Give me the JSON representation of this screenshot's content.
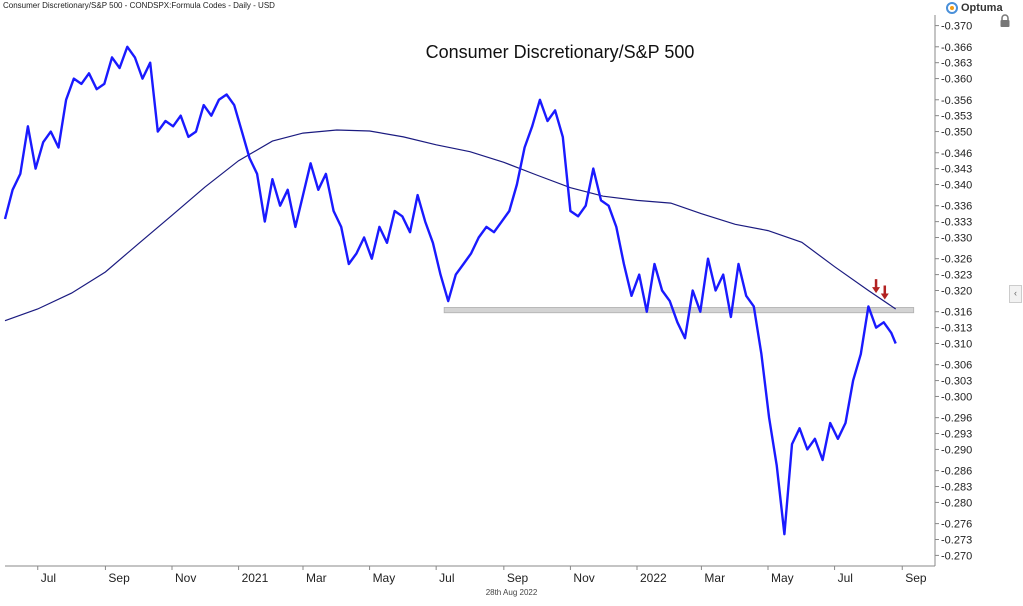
{
  "header": {
    "description": "Consumer Discretionary/S&P 500 - CONDSPX:Formula Codes - Daily - USD",
    "brand": "Optuma"
  },
  "footer": {
    "date": "28th Aug 2022"
  },
  "colors": {
    "price": "#1a1aff",
    "ma": "#1b1b80",
    "band": "#d3d3d3",
    "arrow": "#b22222",
    "grid": "#dddddd"
  },
  "chart_data": {
    "type": "line",
    "title": "Consumer Discretionary/S&P 500",
    "xlabel": "",
    "ylabel": "",
    "ylim": [
      0.268,
      0.372
    ],
    "y_ticks": [
      "0.370",
      "0.366",
      "0.363",
      "0.360",
      "0.356",
      "0.353",
      "0.350",
      "0.346",
      "0.343",
      "0.340",
      "0.336",
      "0.333",
      "0.330",
      "0.326",
      "0.323",
      "0.320",
      "0.316",
      "0.313",
      "0.310",
      "0.306",
      "0.303",
      "0.300",
      "0.296",
      "0.293",
      "0.290",
      "0.286",
      "0.283",
      "0.280",
      "0.276",
      "0.273",
      "0.270"
    ],
    "x_ticks": [
      "Jul",
      "Sep",
      "Nov",
      "2021",
      "Mar",
      "May",
      "Jul",
      "Sep",
      "Nov",
      "2022",
      "Mar",
      "May",
      "Jul",
      "Sep"
    ],
    "x_tick_dates": [
      "2020-07-01",
      "2020-09-01",
      "2020-11-01",
      "2021-01-01",
      "2021-03-01",
      "2021-05-01",
      "2021-07-01",
      "2021-09-01",
      "2021-11-01",
      "2022-01-01",
      "2022-03-01",
      "2022-05-01",
      "2022-07-01",
      "2022-09-01"
    ],
    "x_range": [
      "2020-06-01",
      "2022-10-01"
    ],
    "support_level": [
      0.3158,
      0.3168
    ],
    "support_span": [
      "2021-07-01",
      "2022-08-26"
    ],
    "arrows": [
      {
        "date": "2022-08-08",
        "value": 0.3195
      },
      {
        "date": "2022-08-16",
        "value": 0.3183
      }
    ],
    "series": [
      {
        "name": "",
        "dates": [
          "2020-06-01",
          "2020-06-08",
          "2020-06-15",
          "2020-06-22",
          "2020-06-29",
          "2020-07-06",
          "2020-07-13",
          "2020-07-20",
          "2020-07-27",
          "2020-08-03",
          "2020-08-10",
          "2020-08-17",
          "2020-08-24",
          "2020-08-31",
          "2020-09-07",
          "2020-09-14",
          "2020-09-21",
          "2020-09-28",
          "2020-10-05",
          "2020-10-12",
          "2020-10-19",
          "2020-10-26",
          "2020-11-02",
          "2020-11-09",
          "2020-11-16",
          "2020-11-23",
          "2020-11-30",
          "2020-12-07",
          "2020-12-14",
          "2020-12-21",
          "2020-12-28",
          "2021-01-04",
          "2021-01-11",
          "2021-01-18",
          "2021-01-25",
          "2021-02-01",
          "2021-02-08",
          "2021-02-15",
          "2021-02-22",
          "2021-03-01",
          "2021-03-08",
          "2021-03-15",
          "2021-03-22",
          "2021-03-29",
          "2021-04-05",
          "2021-04-12",
          "2021-04-19",
          "2021-04-26",
          "2021-05-03",
          "2021-05-10",
          "2021-05-17",
          "2021-05-24",
          "2021-05-31",
          "2021-06-07",
          "2021-06-14",
          "2021-06-21",
          "2021-06-28",
          "2021-07-05",
          "2021-07-12",
          "2021-07-19",
          "2021-07-26",
          "2021-08-02",
          "2021-08-09",
          "2021-08-16",
          "2021-08-23",
          "2021-08-30",
          "2021-09-06",
          "2021-09-13",
          "2021-09-20",
          "2021-09-27",
          "2021-10-04",
          "2021-10-11",
          "2021-10-18",
          "2021-10-25",
          "2021-11-01",
          "2021-11-08",
          "2021-11-15",
          "2021-11-22",
          "2021-11-29",
          "2021-12-06",
          "2021-12-13",
          "2021-12-20",
          "2021-12-27",
          "2022-01-03",
          "2022-01-10",
          "2022-01-17",
          "2022-01-24",
          "2022-01-31",
          "2022-02-07",
          "2022-02-14",
          "2022-02-21",
          "2022-02-28",
          "2022-03-07",
          "2022-03-14",
          "2022-03-21",
          "2022-03-28",
          "2022-04-04",
          "2022-04-11",
          "2022-04-18",
          "2022-04-25",
          "2022-05-02",
          "2022-05-09",
          "2022-05-16",
          "2022-05-23",
          "2022-05-30",
          "2022-06-06",
          "2022-06-13",
          "2022-06-20",
          "2022-06-27",
          "2022-07-04",
          "2022-07-11",
          "2022-07-18",
          "2022-07-25",
          "2022-08-01",
          "2022-08-08",
          "2022-08-15",
          "2022-08-22",
          "2022-08-26"
        ],
        "values": [
          0.3335,
          0.339,
          0.342,
          0.351,
          0.343,
          0.348,
          0.35,
          0.347,
          0.356,
          0.36,
          0.359,
          0.361,
          0.358,
          0.359,
          0.364,
          0.362,
          0.366,
          0.364,
          0.36,
          0.363,
          0.35,
          0.352,
          0.351,
          0.353,
          0.349,
          0.35,
          0.355,
          0.353,
          0.356,
          0.357,
          0.355,
          0.35,
          0.345,
          0.342,
          0.333,
          0.341,
          0.336,
          0.339,
          0.332,
          0.338,
          0.344,
          0.339,
          0.342,
          0.335,
          0.332,
          0.325,
          0.327,
          0.33,
          0.326,
          0.332,
          0.329,
          0.335,
          0.334,
          0.331,
          0.338,
          0.333,
          0.329,
          0.323,
          0.318,
          0.323,
          0.325,
          0.327,
          0.33,
          0.332,
          0.331,
          0.333,
          0.335,
          0.34,
          0.347,
          0.351,
          0.356,
          0.352,
          0.354,
          0.349,
          0.335,
          0.334,
          0.336,
          0.343,
          0.337,
          0.336,
          0.332,
          0.325,
          0.319,
          0.323,
          0.316,
          0.325,
          0.32,
          0.318,
          0.314,
          0.311,
          0.32,
          0.316,
          0.326,
          0.32,
          0.323,
          0.315,
          0.325,
          0.319,
          0.317,
          0.308,
          0.296,
          0.287,
          0.274,
          0.291,
          0.294,
          0.29,
          0.292,
          0.288,
          0.295,
          0.292,
          0.295,
          0.303,
          0.308,
          0.317,
          0.313,
          0.314,
          0.312,
          0.31
        ]
      },
      {
        "name": "",
        "dates": [
          "2020-06-01",
          "2020-07-01",
          "2020-08-01",
          "2020-09-01",
          "2020-10-01",
          "2020-11-01",
          "2020-12-01",
          "2021-01-01",
          "2021-02-01",
          "2021-03-01",
          "2021-04-01",
          "2021-05-01",
          "2021-06-01",
          "2021-07-01",
          "2021-08-01",
          "2021-09-01",
          "2021-10-01",
          "2021-11-01",
          "2021-12-01",
          "2022-01-01",
          "2022-02-01",
          "2022-03-01",
          "2022-04-01",
          "2022-05-01",
          "2022-06-01",
          "2022-07-01",
          "2022-08-01",
          "2022-08-26"
        ],
        "values": [
          0.3143,
          0.3165,
          0.3195,
          0.3235,
          0.3288,
          0.3342,
          0.3395,
          0.3445,
          0.3482,
          0.3497,
          0.3503,
          0.3501,
          0.349,
          0.3475,
          0.3462,
          0.3442,
          0.3418,
          0.3394,
          0.3378,
          0.337,
          0.3365,
          0.3345,
          0.3325,
          0.3313,
          0.3291,
          0.3245,
          0.32,
          0.3165
        ]
      }
    ]
  }
}
